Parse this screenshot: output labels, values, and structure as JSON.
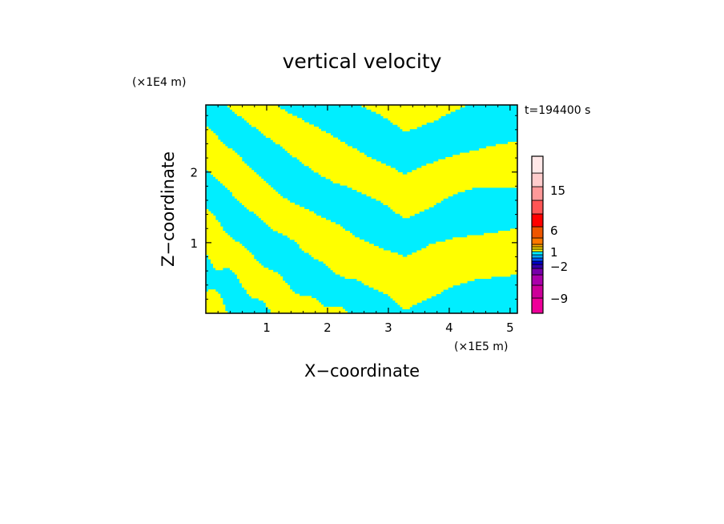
{
  "chart_data": {
    "type": "heatmap",
    "title": "vertical velocity",
    "xlabel": "X−coordinate",
    "ylabel": "Z−coordinate",
    "x_scale_note": "(×1E5 m)",
    "y_scale_note": "(×1E4 m)",
    "time_label": "t=194400 s",
    "xlim": [
      0,
      5.12
    ],
    "ylim": [
      0,
      2.95
    ],
    "x_ticks": [
      1,
      2,
      3,
      4,
      5
    ],
    "x_tick_labels": [
      "1",
      "2",
      "3",
      "4",
      "5"
    ],
    "y_ticks": [
      1,
      2
    ],
    "y_tick_labels": [
      "1",
      "2"
    ],
    "grid": false,
    "field_colors": {
      "positive": "#ffff00",
      "negative": "#00eeff"
    },
    "colorbar": {
      "placement": "right",
      "levels": [
        {
          "color": "#ee0099"
        },
        {
          "color": "#cc0099"
        },
        {
          "color": "#aa00aa"
        },
        {
          "color": "#7700aa"
        },
        {
          "color": "#3300aa"
        },
        {
          "color": "#0000cc"
        },
        {
          "color": "#0055ff"
        },
        {
          "color": "#00aaff"
        },
        {
          "color": "#00eeff"
        },
        {
          "color": "#ffff00"
        },
        {
          "color": "#ffdd00"
        },
        {
          "color": "#ffaa00"
        },
        {
          "color": "#ff7700"
        },
        {
          "color": "#ee5500"
        },
        {
          "color": "#ff0000"
        },
        {
          "color": "#ff5555"
        },
        {
          "color": "#ff9999"
        },
        {
          "color": "#ffcccc"
        },
        {
          "color": "#ffe8e8"
        }
      ],
      "labels": [
        "15",
        "6",
        "1",
        "−2",
        "−9"
      ]
    }
  }
}
